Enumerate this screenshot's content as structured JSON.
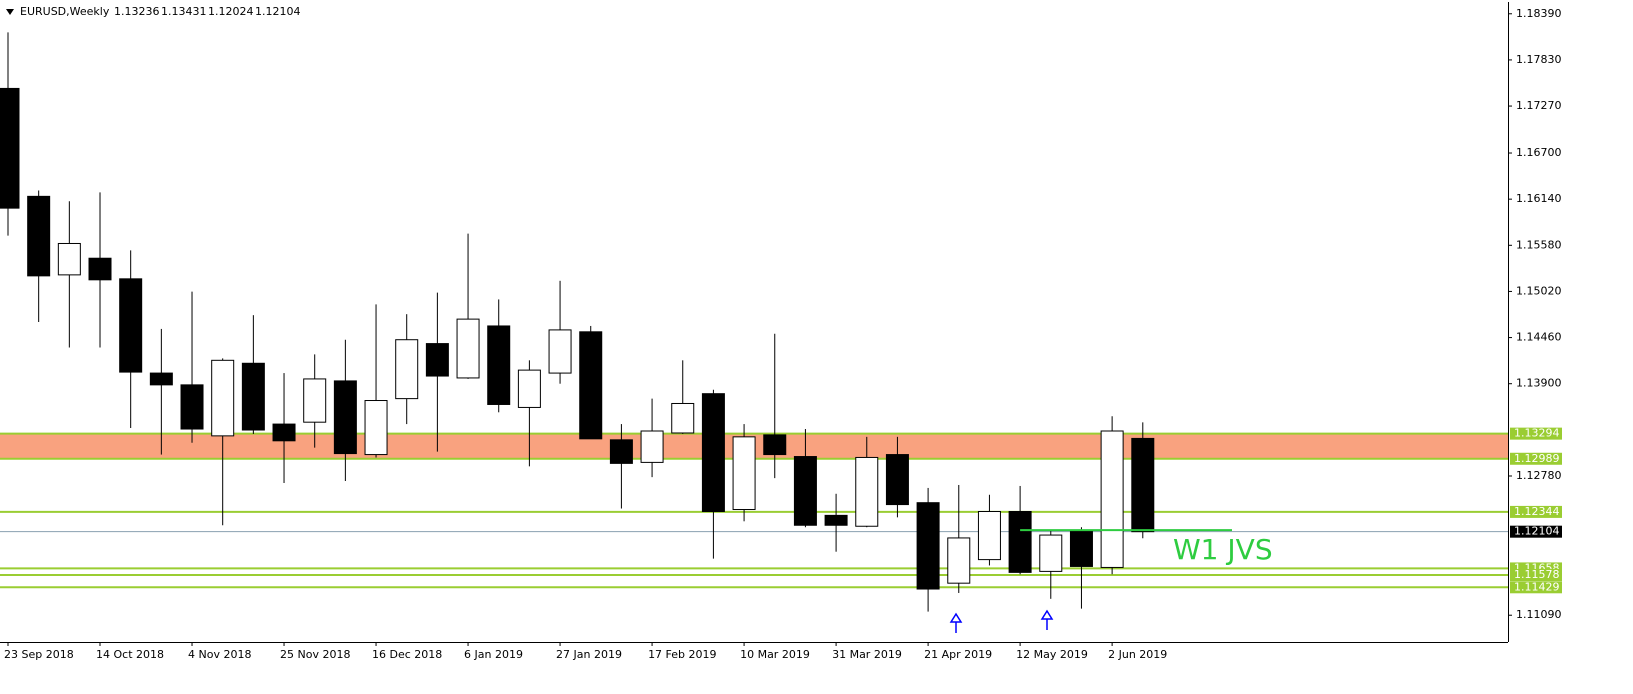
{
  "chart_data": {
    "type": "candlestick",
    "title": "EURUSD,Weekly",
    "categories": [
      "23 Sep 2018",
      null,
      null,
      "14 Oct 2018",
      null,
      null,
      "4 Nov 2018",
      null,
      null,
      "25 Nov 2018",
      null,
      null,
      "16 Dec 2018",
      null,
      null,
      "6 Jan 2019",
      null,
      null,
      "27 Jan 2019",
      null,
      null,
      "17 Feb 2019",
      null,
      null,
      "10 Mar 2019",
      null,
      null,
      "31 Mar 2019",
      null,
      null,
      "21 Apr 2019",
      null,
      null,
      "12 May 2019",
      null,
      null,
      "2 Jun 2019",
      null
    ],
    "open": [
      1.17484,
      1.16174,
      1.15221,
      1.15423,
      1.15173,
      1.14029,
      1.13886,
      1.13267,
      1.14148,
      1.1341,
      1.13433,
      1.13934,
      1.1304,
      1.13719,
      1.14387,
      1.1397,
      1.14601,
      1.13612,
      1.14029,
      1.1453,
      1.13219,
      1.12945,
      1.13302,
      1.13779,
      1.12373,
      1.13279,
      1.13016,
      1.12302,
      1.1217,
      1.1304,
      1.12456,
      1.11479,
      1.11765,
      1.12349,
      1.11622,
      1.12111,
      1.1167,
      1.13236
    ],
    "high": [
      1.18164,
      1.16245,
      1.16114,
      1.16222,
      1.15519,
      1.14565,
      1.15018,
      1.14208,
      1.14732,
      1.14029,
      1.14256,
      1.14434,
      1.14863,
      1.14744,
      1.15006,
      1.15721,
      1.14923,
      1.14184,
      1.15149,
      1.14601,
      1.1341,
      1.13719,
      1.14184,
      1.13827,
      1.1341,
      1.14506,
      1.1335,
      1.12564,
      1.13255,
      1.13255,
      1.12635,
      1.12671,
      1.12552,
      1.12659,
      1.12123,
      1.12158,
      1.13505,
      1.13431
    ],
    "low": [
      1.15697,
      1.14649,
      1.14339,
      1.14339,
      1.13362,
      1.1304,
      1.13183,
      1.12182,
      1.1329,
      1.12695,
      1.13124,
      1.12719,
      1.13005,
      1.1341,
      1.13076,
      1.13958,
      1.13553,
      1.12897,
      1.139,
      1.13231,
      1.12385,
      1.12766,
      1.1329,
      1.11777,
      1.1223,
      1.12754,
      1.12158,
      1.11861,
      1.12158,
      1.12278,
      1.11134,
      1.1136,
      1.11694,
      1.11587,
      1.11289,
      1.1117,
      1.11587,
      1.12024
    ],
    "close": [
      1.16031,
      1.15209,
      1.15602,
      1.15161,
      1.14041,
      1.13886,
      1.1335,
      1.14184,
      1.13338,
      1.13207,
      1.13958,
      1.13052,
      1.13696,
      1.14434,
      1.13993,
      1.14684,
      1.13648,
      1.14065,
      1.14553,
      1.13231,
      1.12933,
      1.13326,
      1.1366,
      1.12349,
      1.13255,
      1.1304,
      1.12182,
      1.12182,
      1.13005,
      1.12433,
      1.11408,
      1.12028,
      1.12349,
      1.1161,
      1.12063,
      1.11682,
      1.13326,
      1.12104
    ],
    "up_color": "#ffffff",
    "down_color": "#000000",
    "ylim": [
      1.10765,
      1.18533
    ],
    "yticks": [
      {
        "value": 1.1839,
        "label": "1.18390"
      },
      {
        "value": 1.1783,
        "label": "1.17830"
      },
      {
        "value": 1.1727,
        "label": "1.17270"
      },
      {
        "value": 1.167,
        "label": "1.16700"
      },
      {
        "value": 1.1614,
        "label": "1.16140"
      },
      {
        "value": 1.1558,
        "label": "1.15580"
      },
      {
        "value": 1.1502,
        "label": "1.15020"
      },
      {
        "value": 1.1446,
        "label": "1.14460"
      },
      {
        "value": 1.139,
        "label": "1.13900"
      },
      {
        "value": 1.1278,
        "label": "1.12780"
      },
      {
        "value": 1.1109,
        "label": "1.11090"
      }
    ],
    "zone": [
      1.12989,
      1.13294
    ],
    "zone_color": "#f9a27f",
    "levels": [
      1.13294,
      1.12989,
      1.12344,
      1.11658,
      1.11578,
      1.11429
    ],
    "level_color": "#9acd32",
    "annotation": {
      "text": "W1 JVS",
      "value": 1.12123,
      "color": "#2ecc40"
    }
  }
}
